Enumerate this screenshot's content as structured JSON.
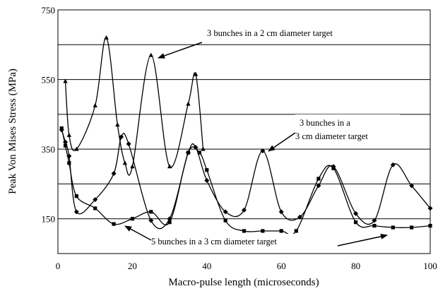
{
  "chart_data": {
    "type": "line",
    "title": "",
    "xlabel": "Macro-pulse length (microseconds)",
    "ylabel": "Peak Von Mises Stress (MPa)",
    "xlim": [
      0,
      100
    ],
    "ylim": [
      50,
      750
    ],
    "x_ticks": [
      "0",
      "20",
      "40",
      "60",
      "80",
      "100"
    ],
    "y_ticks": [
      "150",
      "350",
      "550",
      "750"
    ],
    "grid": "horizontal",
    "legend": "none",
    "series": [
      {
        "key": "three_bunches_2cm",
        "color": "#000000",
        "marker": "triangle",
        "points": [
          [
            2,
            545
          ],
          [
            3,
            390
          ],
          [
            5,
            350
          ],
          [
            10,
            475
          ],
          [
            13,
            670
          ],
          [
            16,
            420
          ],
          [
            18,
            310
          ],
          [
            20,
            300
          ],
          [
            25,
            620
          ],
          [
            30,
            300
          ],
          [
            35,
            480
          ],
          [
            37,
            565
          ],
          [
            39,
            350
          ]
        ]
      },
      {
        "key": "three_bunches_3cm",
        "color": "#000000",
        "marker": "diamond",
        "points": [
          [
            1,
            405
          ],
          [
            2,
            370
          ],
          [
            3,
            330
          ],
          [
            5,
            170
          ],
          [
            10,
            205
          ],
          [
            15,
            280
          ],
          [
            17,
            385
          ],
          [
            19,
            365
          ],
          [
            25,
            145
          ],
          [
            30,
            150
          ],
          [
            35,
            340
          ],
          [
            37,
            355
          ],
          [
            40,
            260
          ],
          [
            45,
            170
          ],
          [
            50,
            175
          ],
          [
            55,
            345
          ],
          [
            60,
            170
          ],
          [
            65,
            155
          ],
          [
            70,
            245
          ],
          [
            74,
            300
          ],
          [
            80,
            165
          ],
          [
            85,
            145
          ],
          [
            90,
            305
          ],
          [
            95,
            245
          ],
          [
            100,
            180
          ]
        ]
      },
      {
        "key": "five_bunches_3cm",
        "color": "#000000",
        "marker": "square",
        "points": [
          [
            1,
            410
          ],
          [
            2,
            360
          ],
          [
            3,
            310
          ],
          [
            5,
            215
          ],
          [
            10,
            180
          ],
          [
            15,
            135
          ],
          [
            20,
            150
          ],
          [
            25,
            170
          ],
          [
            30,
            140
          ],
          [
            35,
            340
          ],
          [
            38,
            340
          ],
          [
            40,
            290
          ],
          [
            45,
            145
          ],
          [
            50,
            115
          ],
          [
            55,
            115
          ],
          [
            60,
            115
          ],
          [
            64,
            115
          ],
          [
            70,
            265
          ],
          [
            74,
            295
          ],
          [
            80,
            140
          ],
          [
            85,
            130
          ],
          [
            90,
            125
          ],
          [
            95,
            125
          ],
          [
            100,
            130
          ]
        ]
      }
    ],
    "annotations": [
      {
        "text": "3 bunches in a 2 cm diameter target"
      },
      {
        "line1": "3 bunches in a",
        "line2": "3 cm diameter target"
      },
      {
        "text": "5 bunches in a 3 cm diameter target"
      }
    ]
  }
}
